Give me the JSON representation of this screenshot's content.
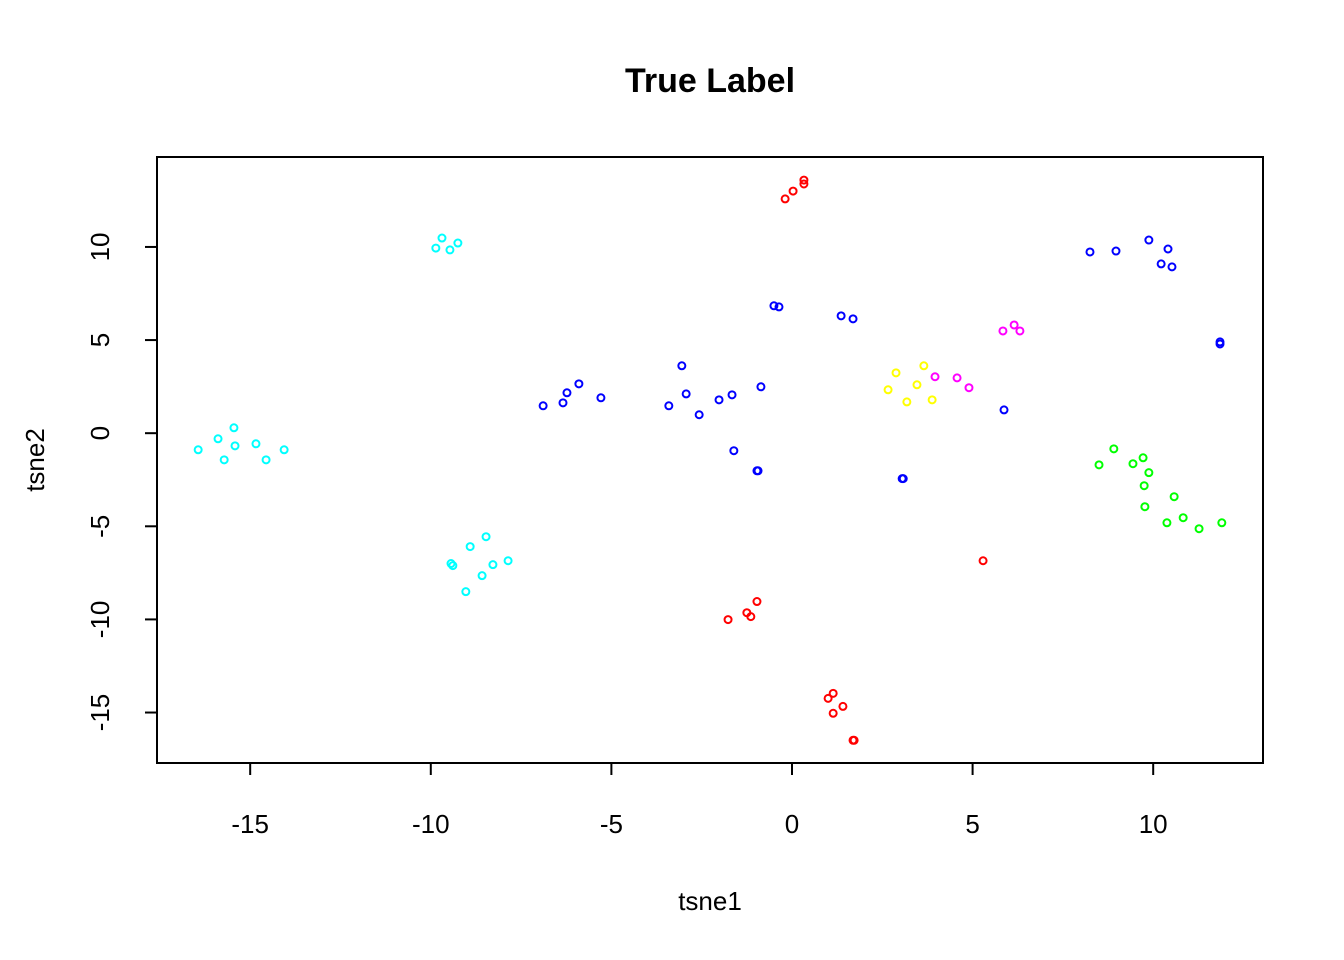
{
  "chart_data": {
    "type": "scatter",
    "title": "True Label",
    "x_label": "tsne1",
    "y_label": "tsne2",
    "xlim": [
      -17.58,
      13.04
    ],
    "ylim": [
      -17.71,
      14.83
    ],
    "xticks": [
      -15,
      -10,
      -5,
      0,
      5,
      10
    ],
    "yticks": [
      -15,
      -10,
      -5,
      0,
      5,
      10
    ],
    "series": [
      {
        "color": "#00ffff",
        "x": [
          -16.44,
          -15.89,
          -15.72,
          -15.45,
          -15.42,
          -14.84,
          -14.56,
          -14.06,
          -9.86,
          -9.69,
          -9.47,
          -9.25,
          -9.44,
          -9.39,
          -8.91,
          -8.47,
          -9.03,
          -8.58,
          -8.28,
          -7.86
        ],
        "values": [
          -0.89,
          -0.3,
          -1.43,
          0.29,
          -0.68,
          -0.57,
          -1.43,
          -0.89,
          9.94,
          10.48,
          9.84,
          10.21,
          -7.0,
          -7.11,
          -6.09,
          -5.56,
          -8.51,
          -7.65,
          -7.06,
          -6.85
        ]
      },
      {
        "color": "#ff0000",
        "x": [
          -0.19,
          0.03,
          0.33,
          0.33,
          -1.77,
          -1.25,
          -1.14,
          -0.97,
          1.0,
          1.14,
          1.14,
          1.41,
          1.69,
          1.72,
          5.29
        ],
        "values": [
          12.58,
          13.0,
          13.59,
          13.38,
          -10.01,
          -9.64,
          -9.85,
          -9.04,
          -14.24,
          -13.97,
          -15.04,
          -14.67,
          -16.49,
          -16.49,
          -6.85
        ]
      },
      {
        "color": "#0000ff",
        "x": [
          -6.89,
          -6.34,
          -6.23,
          -5.9,
          -5.29,
          -3.41,
          -3.05,
          -2.93,
          -2.57,
          -2.02,
          -1.66,
          -1.61,
          -0.86,
          -0.97,
          -0.94,
          -0.5,
          -0.36,
          1.36,
          1.69,
          3.05,
          3.08,
          5.87,
          8.25,
          8.97,
          9.88,
          10.22,
          10.41,
          10.52,
          11.85,
          11.85
        ],
        "values": [
          1.47,
          1.63,
          2.17,
          2.65,
          1.9,
          1.47,
          3.62,
          2.11,
          0.99,
          1.79,
          2.06,
          -0.94,
          2.49,
          -2.02,
          -2.02,
          6.84,
          6.78,
          6.3,
          6.14,
          -2.44,
          -2.44,
          1.25,
          9.73,
          9.78,
          10.37,
          9.09,
          9.89,
          8.93,
          4.9,
          4.79
        ]
      },
      {
        "color": "#ff00ff",
        "x": [
          3.96,
          4.57,
          4.9,
          5.84,
          6.15,
          6.31
        ],
        "values": [
          3.03,
          2.97,
          2.44,
          5.49,
          5.81,
          5.49
        ]
      },
      {
        "color": "#ffff00",
        "x": [
          2.66,
          2.88,
          3.18,
          3.46,
          3.65,
          3.88
        ],
        "values": [
          2.33,
          3.24,
          1.68,
          2.6,
          3.62,
          1.79
        ]
      },
      {
        "color": "#00ff00",
        "x": [
          8.5,
          8.91,
          9.44,
          9.72,
          9.88,
          9.75,
          9.77,
          10.58,
          10.38,
          10.83,
          11.27,
          11.9
        ],
        "values": [
          -1.7,
          -0.84,
          -1.64,
          -1.32,
          -2.12,
          -2.82,
          -3.95,
          -3.41,
          -4.81,
          -4.54,
          -5.13,
          -4.81
        ]
      }
    ]
  }
}
